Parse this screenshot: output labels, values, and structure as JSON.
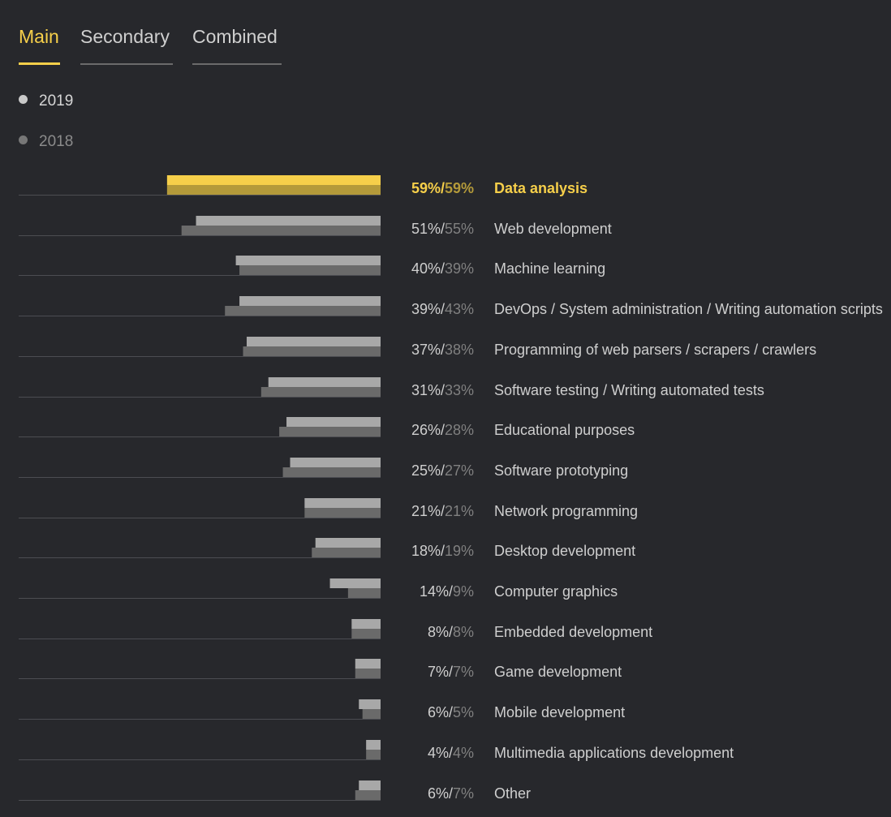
{
  "tabs": [
    {
      "label": "Main",
      "active": true
    },
    {
      "label": "Secondary",
      "active": false
    },
    {
      "label": "Combined",
      "active": false
    }
  ],
  "legend": [
    "2019",
    "2018"
  ],
  "colors": {
    "accent": "#f6cf4a",
    "accent_dark": "#b49a3a",
    "bar_2019": "#a8a8a8",
    "bar_2018": "#6a6a6a",
    "background": "#27282c"
  },
  "chart_data": {
    "type": "bar",
    "orientation": "horizontal",
    "highlighted": "Data analysis",
    "categories": [
      "Data analysis",
      "Web development",
      "Machine learning",
      "DevOps / System administration / Writing automation scripts",
      "Programming of web parsers / scrapers / crawlers",
      "Software testing / Writing automated tests",
      "Educational purposes",
      "Software prototyping",
      "Network programming",
      "Desktop development",
      "Computer graphics",
      "Embedded development",
      "Game development",
      "Mobile development",
      "Multimedia applications development",
      "Other"
    ],
    "series": [
      {
        "name": "2019",
        "values": [
          59,
          51,
          40,
          39,
          37,
          31,
          26,
          25,
          21,
          18,
          14,
          8,
          7,
          6,
          4,
          6
        ]
      },
      {
        "name": "2018",
        "values": [
          59,
          55,
          39,
          43,
          38,
          33,
          28,
          27,
          21,
          19,
          9,
          8,
          7,
          5,
          4,
          7
        ]
      }
    ]
  }
}
